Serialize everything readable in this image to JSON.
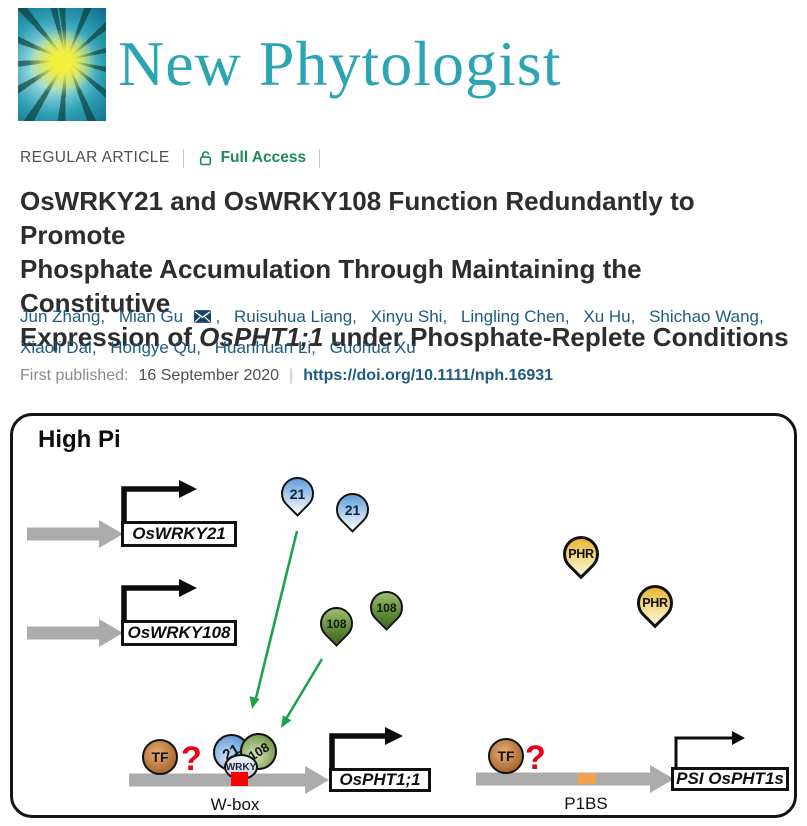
{
  "header": {
    "journal_name": "New Phytologist",
    "article_type": "REGULAR ARTICLE",
    "access_label": "Full Access"
  },
  "title": {
    "line1": "OsWRKY21 and OsWRKY108 Function Redundantly to Promote",
    "line2": "Phosphate Accumulation Through Maintaining the Constitutive",
    "line3_pre": "Expression of ",
    "line3_italic": "OsPHT1;1",
    "line3_post": " under Phosphate-Replete Conditions"
  },
  "authors": {
    "names": [
      "Jun Zhang",
      "Mian Gu",
      "Ruisuhua Liang",
      "Xinyu Shi",
      "Lingling Chen",
      "Xu Hu",
      "Shichao Wang",
      "Xiaoli Dai",
      "Hongye Qu",
      "Huanhuan Li",
      "Guohua Xu"
    ],
    "corresponding": "Mian Gu"
  },
  "published": {
    "label": "First published:",
    "date": "16 September 2020",
    "pipe": "|",
    "doi": "https://doi.org/10.1111/nph.16931"
  },
  "figure": {
    "condition_label": "High Pi",
    "gene1": "OsWRKY21",
    "gene2": "OsWRKY108",
    "pin21": "21",
    "pin108": "108",
    "pinPHR": "PHR",
    "tf": "TF",
    "question": "?",
    "wrky_domain": "WRKY",
    "target1": "OsPHT1;1",
    "target2": "PSI OsPHT1s",
    "site1": "W-box",
    "site2": "P1BS"
  },
  "colors": {
    "journal_teal": "#2BA4B4",
    "access_green": "#1E8A55",
    "link_blue": "#1D5C7E",
    "title_gray": "#2D2D2D",
    "arrow_green": "#1FA14B",
    "gene_arrow_gray": "#ABABAB",
    "wbox_red": "#FF0000",
    "p1bs_orange": "#F2A24E",
    "pin_blue": "#4F93D6",
    "pin_green": "#3E6B1C",
    "pin_gold": "#E6B42C",
    "tf_brown": "#9C5A24",
    "question_red": "#E60012"
  }
}
